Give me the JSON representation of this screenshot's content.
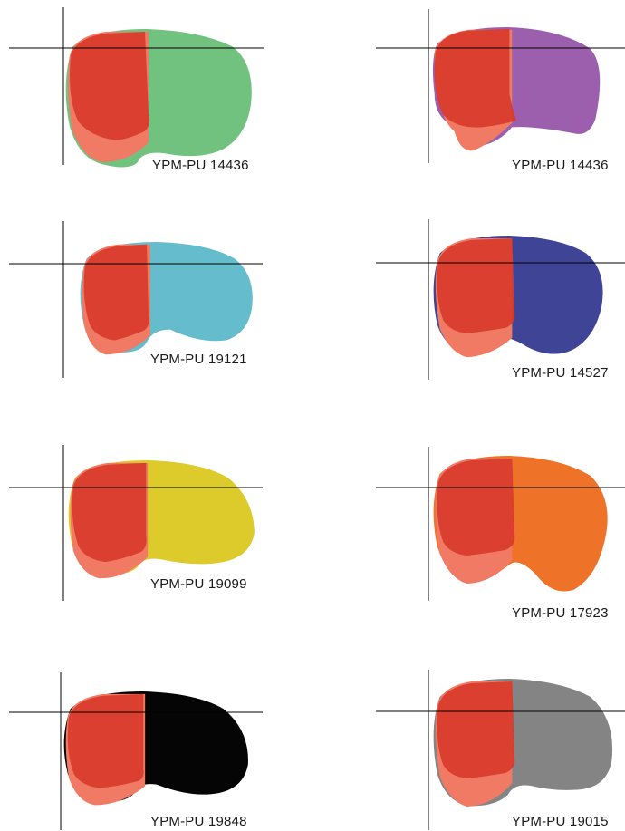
{
  "panels": [
    {
      "label": "YPM-PU 14436",
      "color": "#72c27f"
    },
    {
      "label": "YPM-PU 14436",
      "color": "#9b5fae"
    },
    {
      "label": "YPM-PU 19121",
      "color": "#64bccc"
    },
    {
      "label": "YPM-PU 14527",
      "color": "#3f4497"
    },
    {
      "label": "YPM-PU 19099",
      "color": "#dccb2a"
    },
    {
      "label": "YPM-PU 17923",
      "color": "#ee7227"
    },
    {
      "label": "YPM-PU 19848",
      "color": "#050505"
    },
    {
      "label": "YPM-PU 19015",
      "color": "#848484"
    }
  ],
  "overlay_colors": {
    "red_region": "#d93a2b",
    "salmon_region": "#f07a63",
    "axis_lines": "#000000"
  }
}
